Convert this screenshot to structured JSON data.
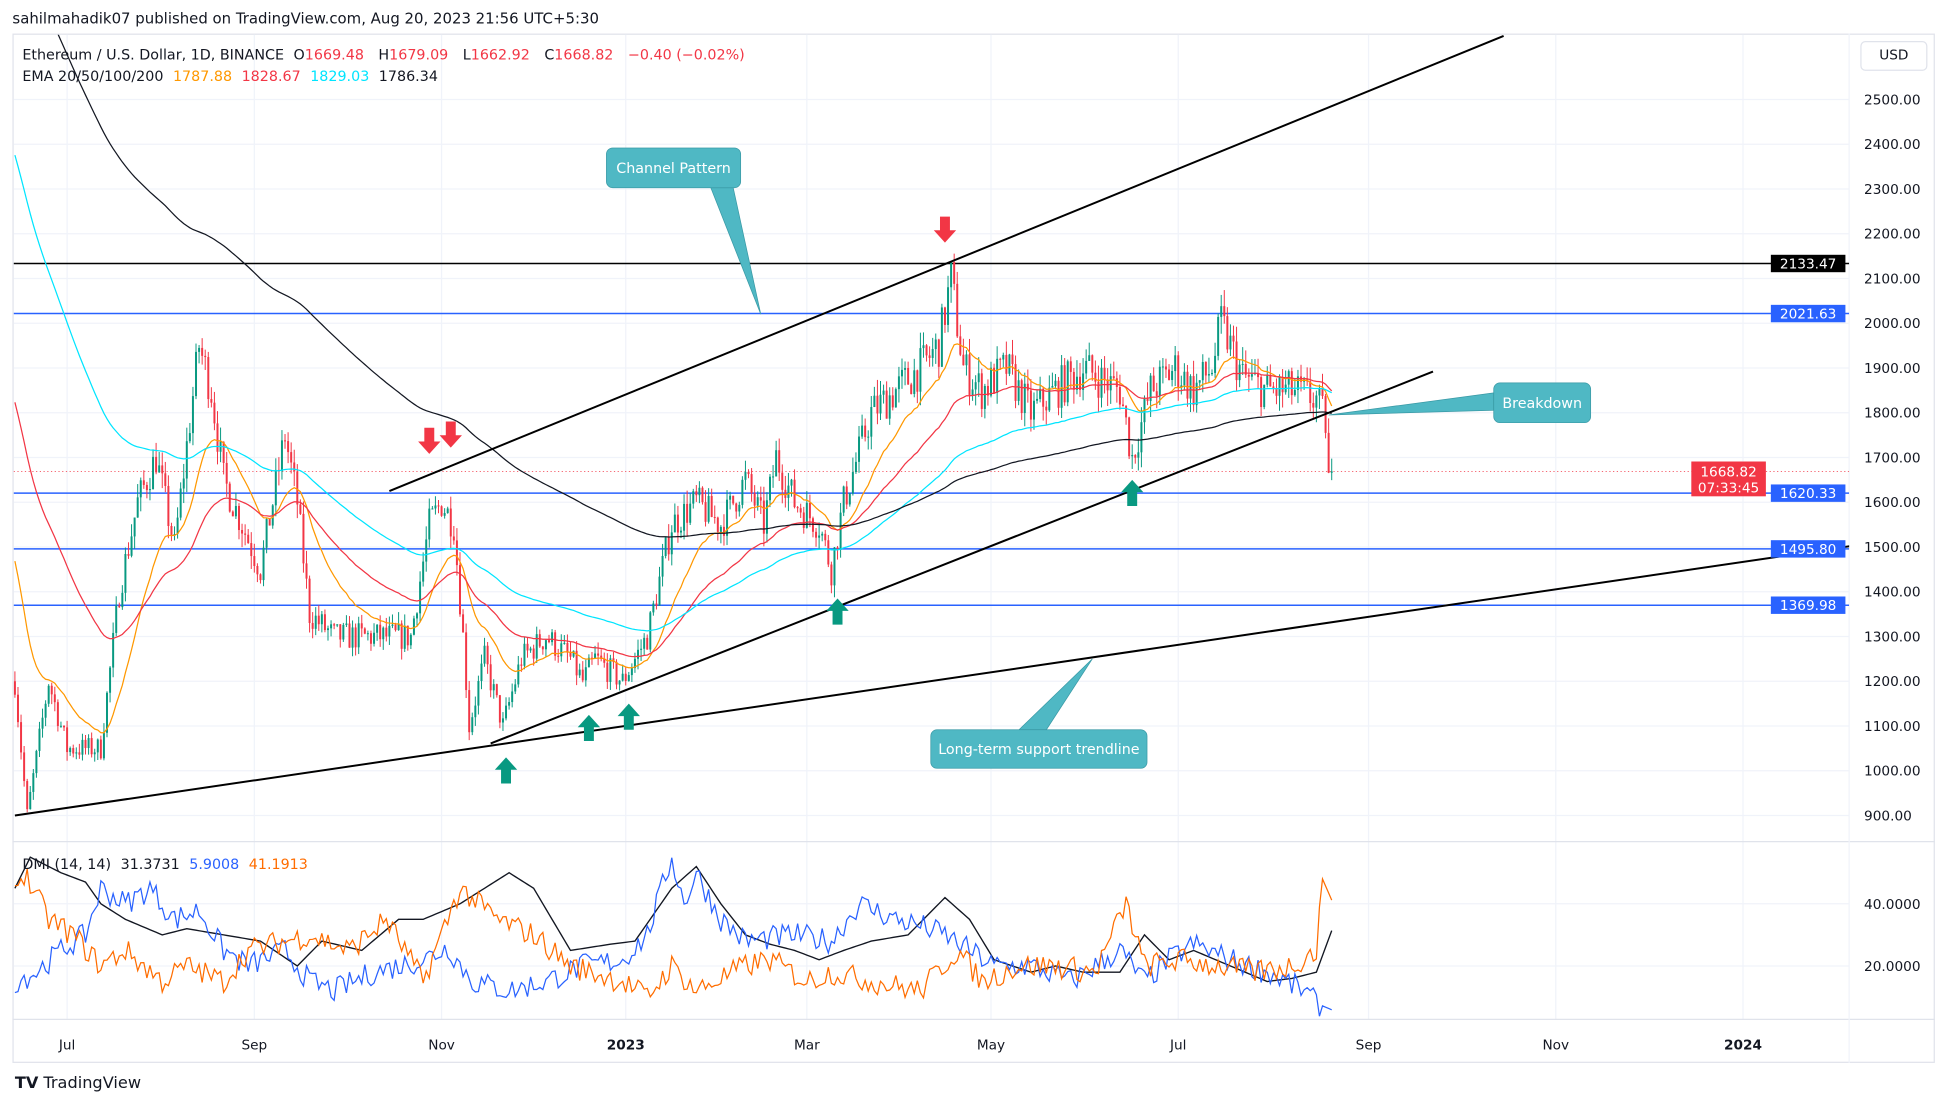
{
  "header": {
    "published": "sahilmahadik07 published on TradingView.com, Aug 20, 2023 21:56 UTC+5:30"
  },
  "legend": {
    "symbol": "Ethereum / U.S. Dollar, 1D, BINANCE",
    "o_label": "O",
    "o": "1669.48",
    "h_label": "H",
    "h": "1679.09",
    "l_label": "L",
    "l": "1662.92",
    "c_label": "C",
    "c": "1668.82",
    "change": "−0.40 (−0.02%)",
    "ema_label": "EMA 20/50/100/200",
    "ema20": "1787.88",
    "ema50": "1828.67",
    "ema100": "1829.03",
    "ema200": "1786.34",
    "dmi_label": "DMI (14, 14)",
    "adx": "31.3731",
    "plus_di": "5.9008",
    "minus_di": "41.1913"
  },
  "currency": "USD",
  "brand": {
    "logo": "TV",
    "name": "TradingView"
  },
  "colors": {
    "up": "#089981",
    "down": "#f23645",
    "ema20": "#ff9800",
    "ema50": "#f23645",
    "ema100": "#00e5ff",
    "ema200": "#131722",
    "level": "#2962ff",
    "callout": "#4fb8c4",
    "adx": "#131722",
    "plus_di": "#2962ff",
    "minus_di": "#ff6d00"
  },
  "chart_data": {
    "type": "candlestick",
    "title": "Ethereum / U.S. Dollar, 1D, BINANCE",
    "price_axis": {
      "min": 900,
      "max": 2500,
      "ticks": [
        "2500.00",
        "2400.00",
        "2300.00",
        "2200.00",
        "2100.00",
        "2000.00",
        "1900.00",
        "1800.00",
        "1700.00",
        "1600.00",
        "1500.00",
        "1400.00",
        "1300.00",
        "1200.00",
        "1100.00",
        "1000.00",
        "900.00"
      ]
    },
    "time_axis": {
      "ticks": [
        {
          "bar": 17,
          "label": "Jul"
        },
        {
          "bar": 78,
          "label": "Sep"
        },
        {
          "bar": 139,
          "label": "Nov"
        },
        {
          "bar": 199,
          "label": "2023"
        },
        {
          "bar": 258,
          "label": "Mar"
        },
        {
          "bar": 318,
          "label": "May"
        },
        {
          "bar": 379,
          "label": "Jul"
        },
        {
          "bar": 441,
          "label": "Sep"
        },
        {
          "bar": 502,
          "label": "Nov"
        },
        {
          "bar": 563,
          "label": "2024"
        }
      ]
    },
    "bars": 430,
    "close_path": [
      [
        0,
        1200
      ],
      [
        4,
        900
      ],
      [
        11,
        1200
      ],
      [
        17,
        1050
      ],
      [
        28,
        1050
      ],
      [
        34,
        1400
      ],
      [
        40,
        1600
      ],
      [
        46,
        1700
      ],
      [
        52,
        1500
      ],
      [
        60,
        1950
      ],
      [
        64,
        1850
      ],
      [
        68,
        1650
      ],
      [
        74,
        1550
      ],
      [
        80,
        1450
      ],
      [
        88,
        1750
      ],
      [
        92,
        1600
      ],
      [
        96,
        1350
      ],
      [
        104,
        1300
      ],
      [
        117,
        1300
      ],
      [
        129,
        1300
      ],
      [
        135,
        1550
      ],
      [
        139,
        1600
      ],
      [
        143,
        1550
      ],
      [
        146,
        1300
      ],
      [
        148,
        1100
      ],
      [
        153,
        1250
      ],
      [
        159,
        1100
      ],
      [
        165,
        1250
      ],
      [
        173,
        1300
      ],
      [
        181,
        1250
      ],
      [
        185,
        1200
      ],
      [
        189,
        1250
      ],
      [
        198,
        1200
      ],
      [
        206,
        1300
      ],
      [
        214,
        1550
      ],
      [
        222,
        1600
      ],
      [
        230,
        1550
      ],
      [
        238,
        1650
      ],
      [
        244,
        1550
      ],
      [
        248,
        1700
      ],
      [
        254,
        1600
      ],
      [
        262,
        1550
      ],
      [
        266,
        1450
      ],
      [
        270,
        1600
      ],
      [
        279,
        1800
      ],
      [
        287,
        1850
      ],
      [
        295,
        1900
      ],
      [
        301,
        1950
      ],
      [
        305,
        2100
      ],
      [
        309,
        1900
      ],
      [
        315,
        1850
      ],
      [
        323,
        1900
      ],
      [
        331,
        1800
      ],
      [
        339,
        1850
      ],
      [
        348,
        1900
      ],
      [
        360,
        1850
      ],
      [
        364,
        1700
      ],
      [
        370,
        1850
      ],
      [
        378,
        1900
      ],
      [
        384,
        1850
      ],
      [
        390,
        1900
      ],
      [
        393,
        2000
      ],
      [
        400,
        1880
      ],
      [
        408,
        1850
      ],
      [
        416,
        1850
      ],
      [
        424,
        1830
      ],
      [
        427,
        1780
      ],
      [
        428,
        1650
      ],
      [
        429,
        1668.82
      ]
    ],
    "ema_seeds": {
      "ema20": 1500,
      "ema50": 1850,
      "ema100": 2400,
      "ema200": 2900
    },
    "levels": [
      {
        "price": 2133.47,
        "label": "2133.47",
        "color": "#000000"
      },
      {
        "price": 2021.63,
        "label": "2021.63",
        "color": "#2962ff"
      },
      {
        "price": 1620.33,
        "label": "1620.33",
        "color": "#2962ff"
      },
      {
        "price": 1495.8,
        "label": "1495.80",
        "color": "#2962ff"
      },
      {
        "price": 1369.98,
        "label": "1369.98",
        "color": "#2962ff"
      }
    ],
    "last_price": {
      "label": "1668.82",
      "countdown": "07:33:45",
      "price": 1668.82
    },
    "trendlines": [
      {
        "name": "channel-upper",
        "points": [
          [
            122,
            1625
          ],
          [
            485,
            2642
          ]
        ]
      },
      {
        "name": "channel-lower",
        "points": [
          [
            155,
            1061
          ],
          [
            462,
            1892
          ]
        ]
      },
      {
        "name": "long-term-support",
        "points": [
          [
            0,
            900
          ],
          [
            598,
            1502
          ]
        ]
      }
    ],
    "arrows": [
      {
        "dir": "down",
        "bar": 135,
        "price": 1708
      },
      {
        "dir": "down",
        "bar": 142,
        "price": 1722
      },
      {
        "dir": "down",
        "bar": 303,
        "price": 2180
      },
      {
        "dir": "up",
        "bar": 160,
        "price": 1030
      },
      {
        "dir": "up",
        "bar": 187,
        "price": 1125
      },
      {
        "dir": "up",
        "bar": 200,
        "price": 1150
      },
      {
        "dir": "up",
        "bar": 268,
        "price": 1385
      },
      {
        "dir": "up",
        "bar": 364,
        "price": 1650
      }
    ],
    "callouts": [
      {
        "text": "Channel Pattern",
        "target": [
          243,
          2020
        ]
      },
      {
        "text": "Breakdown",
        "target": [
          428,
          1795
        ]
      },
      {
        "text": "Long-term support trendline",
        "target": [
          351,
          1250
        ]
      }
    ],
    "dmi": {
      "axis": {
        "ticks": [
          "40.0000",
          "20.0000"
        ]
      },
      "adx": [
        [
          0,
          45
        ],
        [
          5,
          55
        ],
        [
          15,
          50
        ],
        [
          23,
          47
        ],
        [
          28,
          40
        ],
        [
          36,
          35
        ],
        [
          48,
          30
        ],
        [
          56,
          32
        ],
        [
          68,
          30
        ],
        [
          80,
          28
        ],
        [
          92,
          20
        ],
        [
          100,
          28
        ],
        [
          113,
          25
        ],
        [
          125,
          35
        ],
        [
          133,
          35
        ],
        [
          145,
          40
        ],
        [
          161,
          50
        ],
        [
          169,
          45
        ],
        [
          181,
          25
        ],
        [
          194,
          27
        ],
        [
          202,
          28
        ],
        [
          214,
          45
        ],
        [
          222,
          52
        ],
        [
          230,
          40
        ],
        [
          238,
          30
        ],
        [
          246,
          27
        ],
        [
          254,
          25
        ],
        [
          262,
          22
        ],
        [
          270,
          25
        ],
        [
          279,
          28
        ],
        [
          291,
          30
        ],
        [
          303,
          42
        ],
        [
          311,
          35
        ],
        [
          319,
          22
        ],
        [
          331,
          18
        ],
        [
          339,
          20
        ],
        [
          348,
          18
        ],
        [
          360,
          18
        ],
        [
          368,
          30
        ],
        [
          376,
          22
        ],
        [
          384,
          25
        ],
        [
          396,
          20
        ],
        [
          408,
          15
        ],
        [
          416,
          16
        ],
        [
          424,
          18
        ],
        [
          429,
          31.37
        ]
      ],
      "plus_di": [
        [
          0,
          15
        ],
        [
          7,
          18
        ],
        [
          15,
          25
        ],
        [
          23,
          30
        ],
        [
          28,
          45
        ],
        [
          36,
          40
        ],
        [
          44,
          45
        ],
        [
          52,
          35
        ],
        [
          60,
          38
        ],
        [
          68,
          25
        ],
        [
          76,
          20
        ],
        [
          88,
          25
        ],
        [
          96,
          15
        ],
        [
          104,
          12
        ],
        [
          117,
          18
        ],
        [
          133,
          22
        ],
        [
          141,
          26
        ],
        [
          149,
          15
        ],
        [
          161,
          12
        ],
        [
          173,
          15
        ],
        [
          185,
          20
        ],
        [
          198,
          22
        ],
        [
          206,
          30
        ],
        [
          214,
          55
        ],
        [
          218,
          40
        ],
        [
          222,
          50
        ],
        [
          230,
          35
        ],
        [
          238,
          28
        ],
        [
          254,
          30
        ],
        [
          266,
          28
        ],
        [
          275,
          40
        ],
        [
          287,
          35
        ],
        [
          295,
          33
        ],
        [
          303,
          30
        ],
        [
          311,
          25
        ],
        [
          319,
          20
        ],
        [
          331,
          20
        ],
        [
          344,
          15
        ],
        [
          360,
          25
        ],
        [
          368,
          15
        ],
        [
          376,
          22
        ],
        [
          384,
          27
        ],
        [
          396,
          22
        ],
        [
          408,
          18
        ],
        [
          420,
          12
        ],
        [
          424,
          8
        ],
        [
          429,
          5.9
        ]
      ],
      "minus_di": [
        [
          0,
          45
        ],
        [
          3,
          50
        ],
        [
          11,
          35
        ],
        [
          19,
          30
        ],
        [
          28,
          20
        ],
        [
          36,
          25
        ],
        [
          48,
          15
        ],
        [
          56,
          20
        ],
        [
          68,
          15
        ],
        [
          76,
          25
        ],
        [
          88,
          28
        ],
        [
          96,
          30
        ],
        [
          109,
          25
        ],
        [
          121,
          35
        ],
        [
          133,
          15
        ],
        [
          145,
          45
        ],
        [
          157,
          35
        ],
        [
          169,
          30
        ],
        [
          181,
          20
        ],
        [
          198,
          15
        ],
        [
          206,
          10
        ],
        [
          214,
          20
        ],
        [
          222,
          12
        ],
        [
          238,
          20
        ],
        [
          246,
          22
        ],
        [
          258,
          15
        ],
        [
          266,
          18
        ],
        [
          279,
          15
        ],
        [
          295,
          12
        ],
        [
          307,
          25
        ],
        [
          315,
          15
        ],
        [
          327,
          20
        ],
        [
          339,
          20
        ],
        [
          352,
          18
        ],
        [
          362,
          40
        ],
        [
          368,
          20
        ],
        [
          380,
          22
        ],
        [
          392,
          20
        ],
        [
          404,
          18
        ],
        [
          416,
          20
        ],
        [
          424,
          25
        ],
        [
          426,
          48
        ],
        [
          429,
          41.19
        ]
      ]
    }
  }
}
